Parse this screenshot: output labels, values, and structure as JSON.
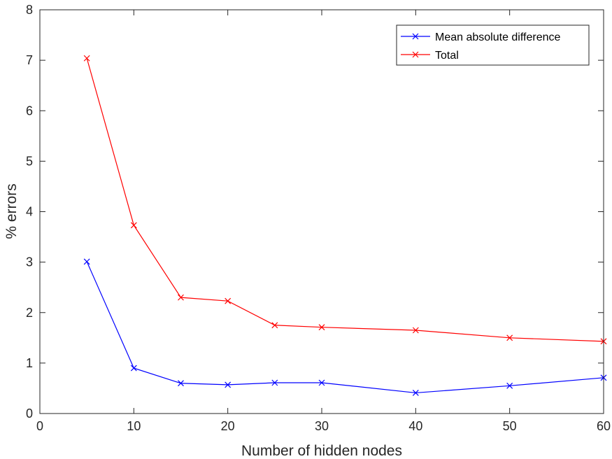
{
  "chart_data": {
    "type": "line",
    "title": "",
    "xlabel": "Number of hidden nodes",
    "ylabel": "% errors",
    "xlim": [
      0,
      60
    ],
    "ylim": [
      0,
      8
    ],
    "xticks": [
      0,
      10,
      20,
      30,
      40,
      50,
      60
    ],
    "yticks": [
      0,
      1,
      2,
      3,
      4,
      5,
      6,
      7,
      8
    ],
    "grid": false,
    "legend_position": "top-right",
    "series": [
      {
        "name": "Mean absolute difference",
        "color": "#0000ff",
        "marker": "x",
        "x": [
          5,
          10,
          15,
          20,
          25,
          30,
          40,
          50,
          60
        ],
        "y": [
          3.01,
          0.9,
          0.6,
          0.57,
          0.61,
          0.61,
          0.41,
          0.55,
          0.71
        ]
      },
      {
        "name": "Total",
        "color": "#ff0000",
        "marker": "x",
        "x": [
          5,
          10,
          15,
          20,
          25,
          30,
          40,
          50,
          60
        ],
        "y": [
          7.04,
          3.73,
          2.3,
          2.23,
          1.75,
          1.71,
          1.65,
          1.5,
          1.43
        ]
      }
    ]
  }
}
